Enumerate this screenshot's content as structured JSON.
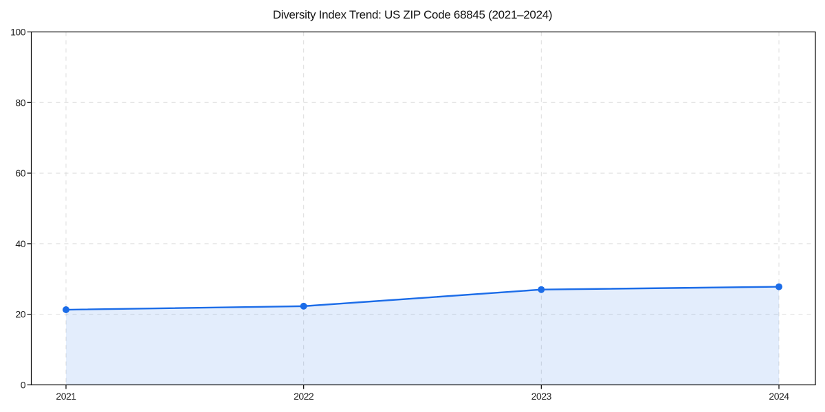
{
  "figure": {
    "background": "#ffffff"
  },
  "chart_data": {
    "type": "area",
    "title": "Diversity Index Trend: US ZIP Code 68845 (2021–2024)",
    "categories": [
      "2021",
      "2022",
      "2023",
      "2024"
    ],
    "series": [
      {
        "name": "Diversity Index",
        "values": [
          21.3,
          22.3,
          27.0,
          27.8
        ]
      }
    ],
    "xlabel": "",
    "ylabel": "",
    "ylim": [
      0,
      100
    ],
    "yticks": [
      0,
      20,
      40,
      60,
      80,
      100
    ],
    "grid": "dashed",
    "legend": "none",
    "line_color": "#1b6ce8",
    "marker_color": "#1b6ce8",
    "fill_color": "rgba(27,108,232,0.12)",
    "grid_color": "#dcdcdc",
    "axis_color": "#000000",
    "tick_label_color": "#222222",
    "title_color": "#111111"
  }
}
